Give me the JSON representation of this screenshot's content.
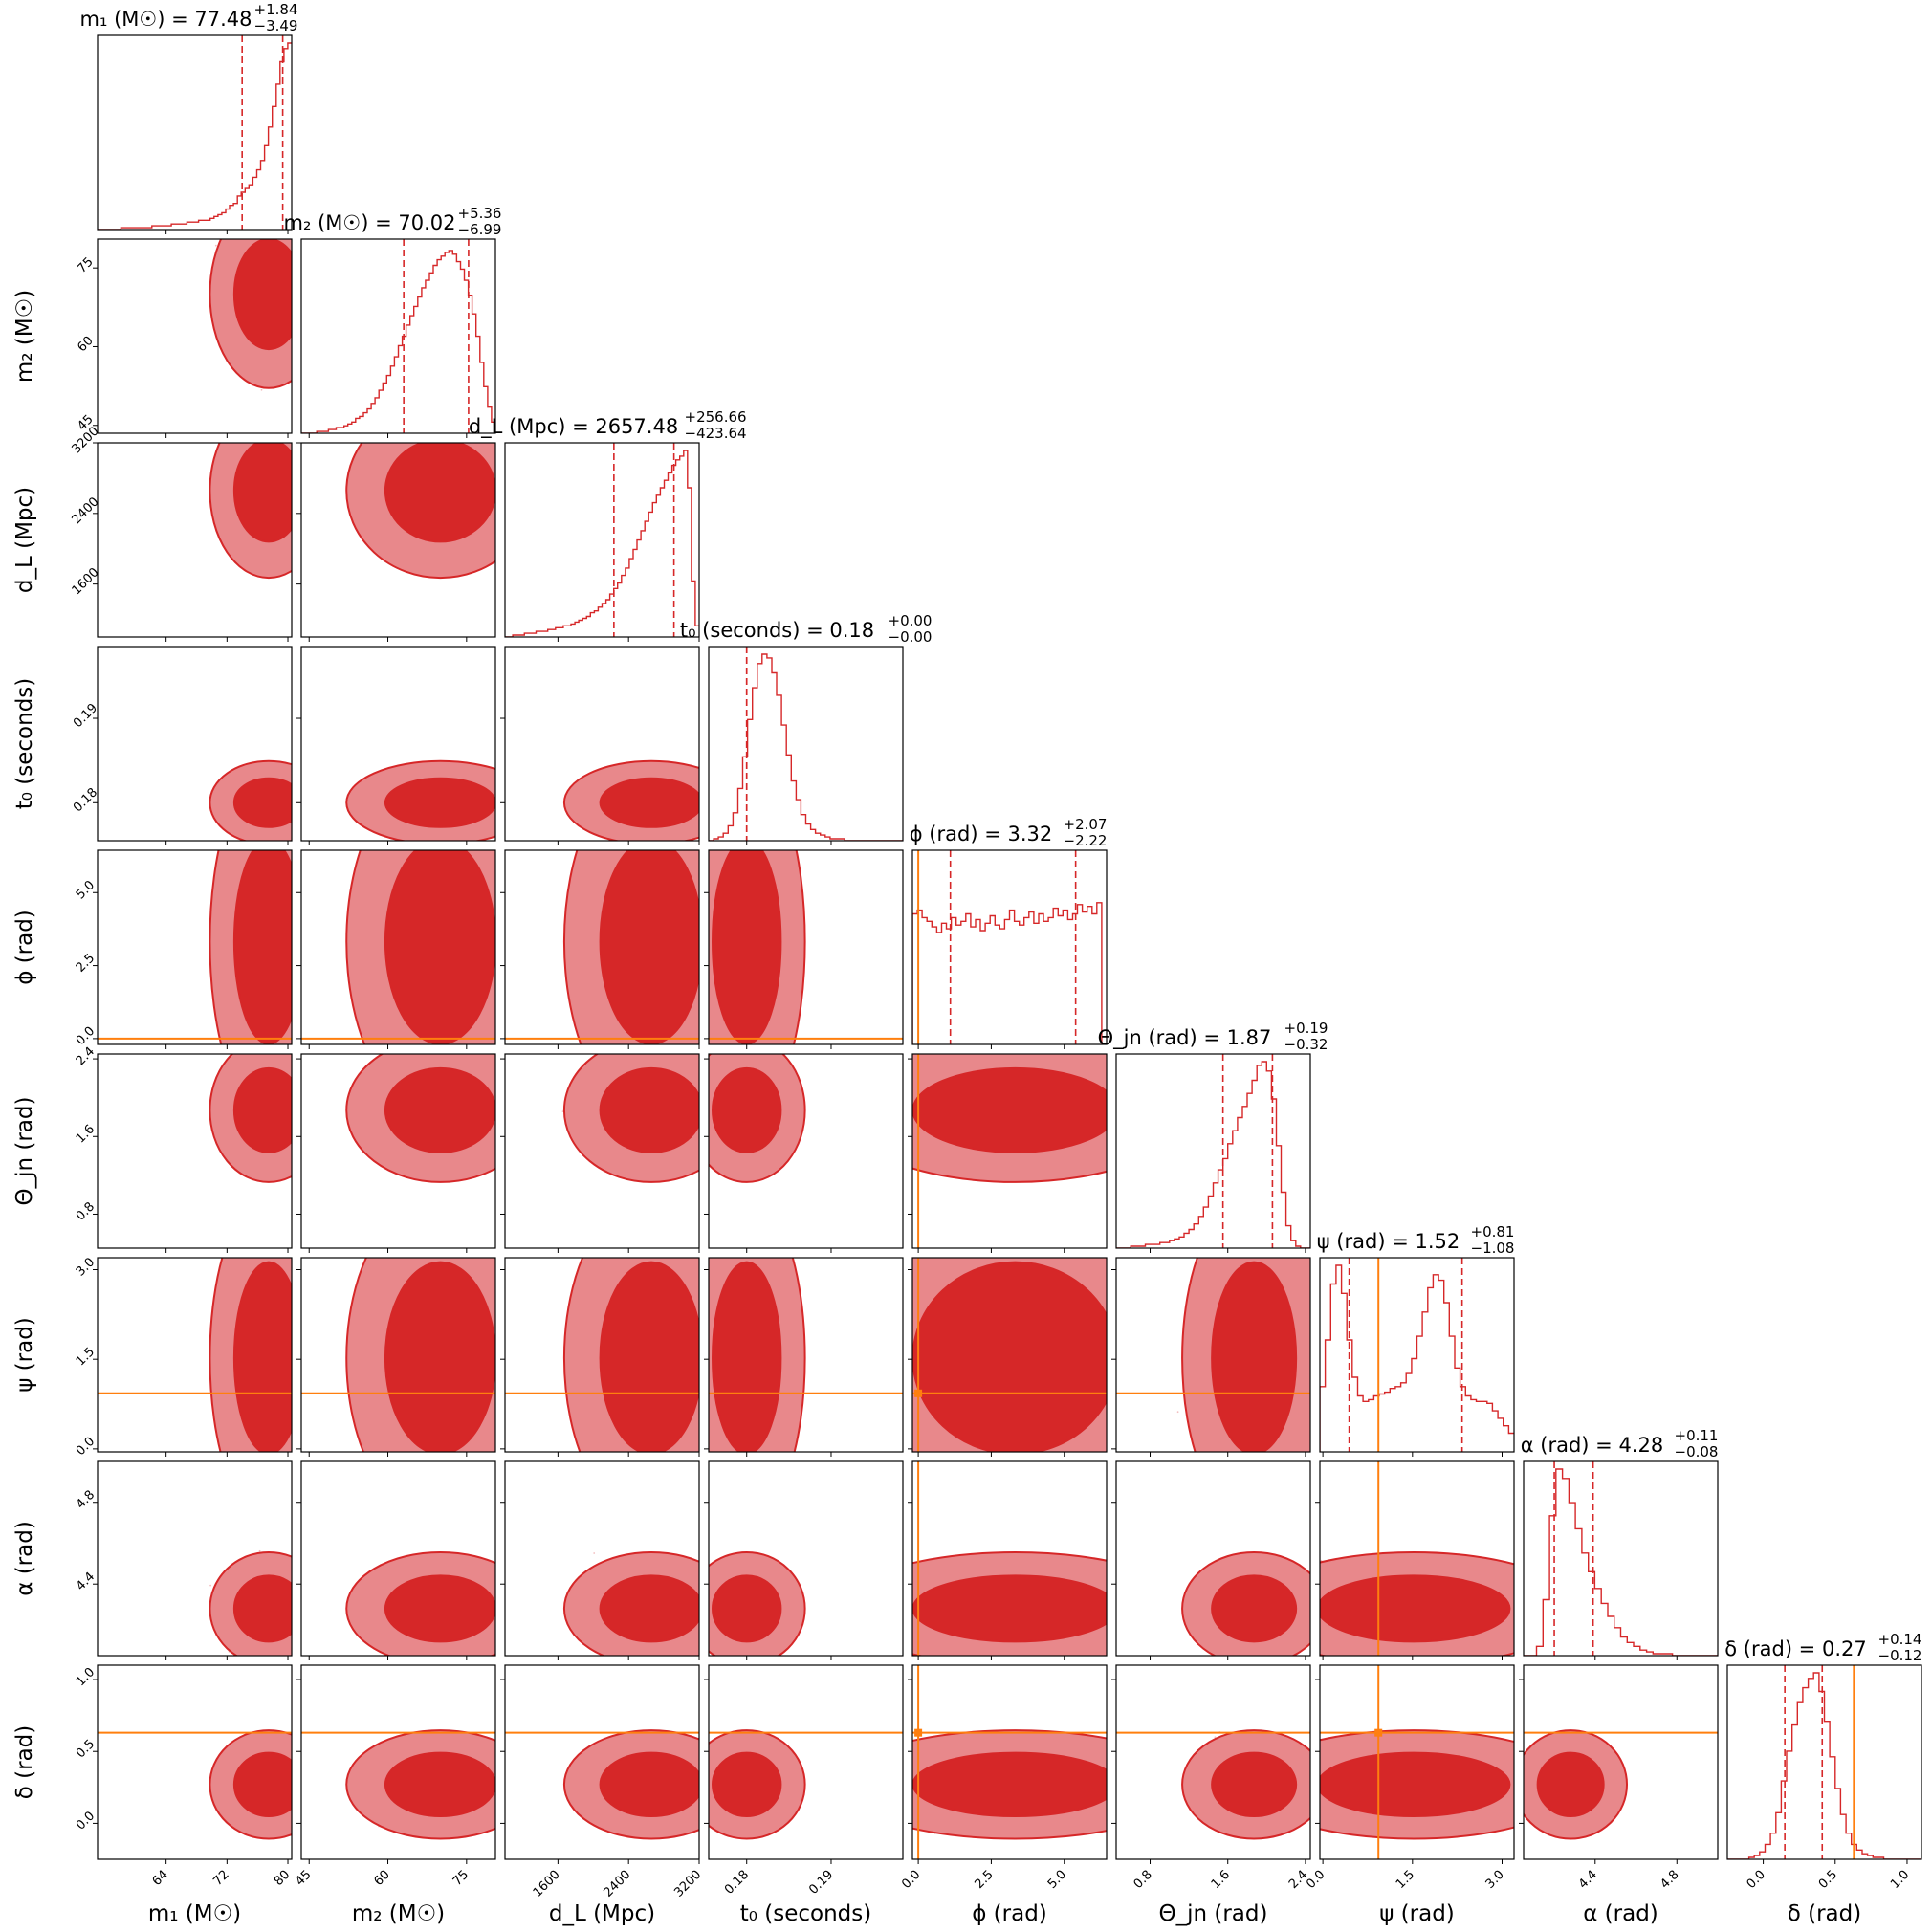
{
  "chart_data": {
    "type": "corner",
    "colors": {
      "posterior": "#d62728",
      "posterior_light": "#e8888b",
      "truth": "#ff7f0e",
      "axis": "#000000"
    },
    "parameters": [
      {
        "axis_label": "m₁ (M☉)",
        "ticks": [
          "64",
          "72",
          "80"
        ],
        "tick_values": [
          64,
          72,
          80
        ],
        "range": [
          55,
          80.5
        ],
        "title": {
          "prefix": "m₁ (M☉) = 77.48",
          "upper": "+1.84",
          "lower": "−3.49"
        },
        "median": 77.48,
        "lower_err": 3.49,
        "upper_err": 1.84,
        "truth": null,
        "hist": [
          0,
          0,
          0,
          0,
          0,
          0,
          1,
          1,
          1,
          1,
          1,
          1,
          1,
          1,
          2,
          2,
          2,
          2,
          2,
          3,
          3,
          3,
          3,
          4,
          4,
          4,
          5,
          5,
          5,
          6,
          7,
          8,
          9,
          11,
          13,
          14,
          18,
          20,
          22,
          24,
          28,
          32,
          37,
          45,
          55,
          66,
          78,
          90,
          97,
          100
        ]
      },
      {
        "axis_label": "m₂ (M☉)",
        "ticks": [
          "45",
          "60",
          "75"
        ],
        "tick_values": [
          45,
          60,
          75
        ],
        "range": [
          43.5,
          80.5
        ],
        "title": {
          "prefix": "m₂ (M☉) = 70.02",
          "upper": "+5.36",
          "lower": "−6.99"
        },
        "median": 70.02,
        "lower_err": 6.99,
        "upper_err": 5.36,
        "truth": null,
        "hist": [
          0,
          0,
          0,
          0,
          1,
          1,
          1,
          2,
          2,
          3,
          3,
          4,
          5,
          6,
          8,
          9,
          11,
          13,
          16,
          19,
          23,
          27,
          31,
          36,
          41,
          47,
          52,
          58,
          63,
          68,
          73,
          78,
          82,
          86,
          90,
          93,
          95,
          97,
          98,
          96,
          92,
          88,
          82,
          74,
          64,
          52,
          38,
          25,
          14,
          6
        ]
      },
      {
        "axis_label": "d_L (Mpc)",
        "ticks": [
          "1600",
          "2400",
          "3200"
        ],
        "tick_values": [
          1600,
          2400,
          3200
        ],
        "range": [
          1000,
          3200
        ],
        "title": {
          "prefix": "d_L (Mpc) = 2657.48",
          "upper": "+256.66",
          "lower": "−423.64"
        },
        "median": 2657.48,
        "lower_err": 423.64,
        "upper_err": 256.66,
        "truth": null,
        "hist": [
          0,
          0,
          1,
          1,
          1,
          2,
          2,
          2,
          3,
          3,
          3,
          4,
          4,
          5,
          5,
          6,
          6,
          7,
          8,
          9,
          10,
          11,
          13,
          14,
          16,
          18,
          20,
          23,
          26,
          29,
          33,
          37,
          42,
          47,
          52,
          57,
          62,
          67,
          72,
          76,
          80,
          84,
          88,
          92,
          95,
          97,
          100,
          80,
          30,
          6
        ]
      },
      {
        "axis_label": "t₀ (seconds)",
        "ticks": [
          "0.18",
          "0.19"
        ],
        "tick_values": [
          0.18,
          0.19
        ],
        "range": [
          0.1755,
          0.1985
        ],
        "title": {
          "prefix": "t₀ (seconds) = 0.18",
          "upper": "+0.00",
          "lower": "−0.00"
        },
        "median": 0.18,
        "lower_err": 0.0,
        "upper_err": 0.0,
        "truth": null,
        "hist": [
          0,
          1,
          2,
          4,
          8,
          15,
          28,
          45,
          65,
          82,
          95,
          100,
          98,
          90,
          78,
          62,
          46,
          32,
          22,
          14,
          9,
          6,
          4,
          3,
          2,
          1,
          1,
          1,
          0,
          0,
          0,
          0,
          0,
          0,
          0,
          0,
          0,
          0,
          0,
          0
        ]
      },
      {
        "axis_label": "ϕ (rad)",
        "ticks": [
          "0.0",
          "2.5",
          "5.0"
        ],
        "tick_values": [
          0,
          2.5,
          5.0
        ],
        "range": [
          -0.2,
          6.45
        ],
        "title": {
          "prefix": "ϕ (rad) = 3.32",
          "upper": "+2.07",
          "lower": "−2.22"
        },
        "median": 3.32,
        "lower_err": 2.22,
        "upper_err": 2.07,
        "truth": 0.0,
        "hist": [
          70,
          72,
          68,
          66,
          63,
          60,
          65,
          62,
          68,
          64,
          66,
          70,
          63,
          67,
          61,
          65,
          69,
          64,
          62,
          67,
          72,
          66,
          64,
          68,
          71,
          65,
          70,
          66,
          68,
          73,
          69,
          72,
          67,
          70,
          75,
          71,
          74,
          70,
          76,
          0
        ]
      },
      {
        "axis_label": "Θ_jn (rad)",
        "ticks": [
          "0.8",
          "1.6",
          "2.4"
        ],
        "tick_values": [
          0.8,
          1.6,
          2.4
        ],
        "range": [
          0.45,
          2.45
        ],
        "title": {
          "prefix": "Θ_jn (rad) = 1.87",
          "upper": "+0.19",
          "lower": "−0.32"
        },
        "median": 1.87,
        "lower_err": 0.32,
        "upper_err": 0.19,
        "truth": null,
        "hist": [
          0,
          0,
          0,
          1,
          1,
          1,
          2,
          2,
          2,
          3,
          3,
          4,
          5,
          6,
          8,
          10,
          13,
          17,
          22,
          28,
          35,
          42,
          48,
          56,
          63,
          70,
          76,
          83,
          90,
          98,
          100,
          95,
          80,
          55,
          30,
          12,
          4,
          1,
          0,
          0
        ]
      },
      {
        "axis_label": "ψ (rad)",
        "ticks": [
          "0.0",
          "1.5",
          "3.0"
        ],
        "tick_values": [
          0,
          1.5,
          3.0
        ],
        "range": [
          -0.05,
          3.2
        ],
        "title": {
          "prefix": "ψ (rad) = 1.52",
          "upper": "+0.81",
          "lower": "−1.08"
        },
        "median": 1.52,
        "lower_err": 1.08,
        "upper_err": 0.81,
        "truth": 0.93,
        "hist": [
          35,
          60,
          90,
          100,
          85,
          60,
          40,
          30,
          27,
          28,
          30,
          31,
          32,
          34,
          35,
          37,
          42,
          50,
          62,
          75,
          88,
          95,
          92,
          80,
          62,
          45,
          35,
          30,
          28,
          27,
          27,
          26,
          22,
          18,
          14,
          10
        ]
      },
      {
        "axis_label": "α (rad)",
        "ticks": [
          "4.4",
          "4.8"
        ],
        "tick_values": [
          4.4,
          4.8
        ],
        "range": [
          4.05,
          5.0
        ],
        "title": {
          "prefix": "α (rad) = 4.28",
          "upper": "+0.11",
          "lower": "−0.08"
        },
        "median": 4.28,
        "lower_err": 0.08,
        "upper_err": 0.11,
        "truth": null,
        "hist": [
          0,
          0,
          5,
          30,
          75,
          100,
          95,
          82,
          68,
          55,
          45,
          36,
          28,
          21,
          15,
          10,
          7,
          5,
          3,
          2,
          1,
          1,
          1,
          0,
          0,
          0,
          0,
          0,
          0,
          0
        ]
      },
      {
        "axis_label": "δ (rad)",
        "ticks": [
          "0.0",
          "0.5",
          "1.0"
        ],
        "tick_values": [
          0,
          0.5,
          1.0
        ],
        "range": [
          -0.25,
          1.1
        ],
        "title": {
          "prefix": "δ (rad) = 0.27",
          "upper": "+0.14",
          "lower": "−0.12"
        },
        "median": 0.27,
        "lower_err": 0.12,
        "upper_err": 0.14,
        "truth": 0.63,
        "hist": [
          0,
          0,
          0,
          0,
          1,
          2,
          4,
          8,
          14,
          25,
          42,
          58,
          72,
          84,
          92,
          97,
          100,
          90,
          74,
          55,
          38,
          24,
          14,
          8,
          5,
          3,
          2,
          1,
          1,
          0,
          0,
          0,
          0,
          0,
          0,
          0
        ]
      }
    ],
    "contour_levels": [
      "inner",
      "outer"
    ]
  }
}
